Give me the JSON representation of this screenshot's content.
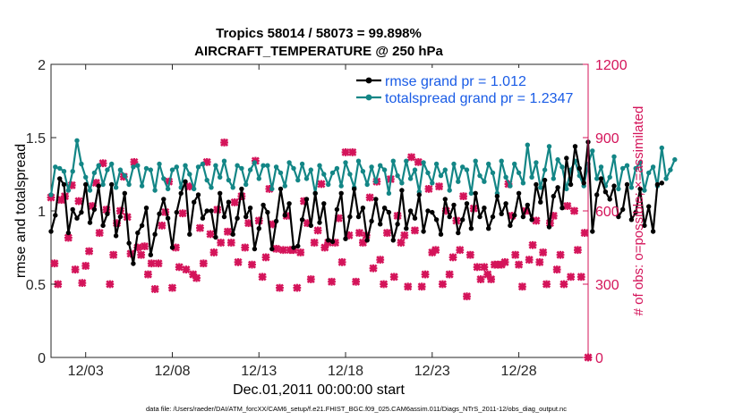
{
  "chart_data": {
    "type": "line",
    "title_line1": "Tropics 58014 / 58073 = 99.898%",
    "title_line2": "AIRCRAFT_TEMPERATURE @ 250 hPa",
    "xlabel": "Dec.01,2011 00:00:00 start",
    "ylabel": "rmse and totalspread",
    "ylabel_right": "# of obs: o=possible; ×=assimilated",
    "footnote": "data file: /Users/raeder/DAI/ATM_forcXX/CAM6_setup/f.e21.FHIST_BGC.f09_025.CAM6assim.011/Diags_NTrS_2011-12/obs_diag_output.nc",
    "xlim": [
      1.0,
      32.0
    ],
    "ylim": [
      0,
      2
    ],
    "ylim_right": [
      0,
      1200
    ],
    "x_ticks": [
      3,
      8,
      13,
      18,
      23,
      28
    ],
    "x_tick_labels": [
      "12/03",
      "12/08",
      "12/13",
      "12/18",
      "12/23",
      "12/28"
    ],
    "y_ticks": [
      0,
      0.5,
      1,
      1.5,
      2
    ],
    "y_tick_labels": [
      "0",
      "0.5",
      "1",
      "1.5",
      "2"
    ],
    "y_right_ticks": [
      0,
      300,
      600,
      900,
      1200
    ],
    "y_right_tick_labels": [
      "0",
      "300",
      "600",
      "900",
      "1200"
    ],
    "colors": {
      "rmse": "#000000",
      "spread": "#138686",
      "obs": "#d4145a"
    },
    "series": [
      {
        "name": "rmse grand pr = 1.012",
        "x_start": 1.0,
        "x_step": 0.25,
        "values": [
          0.86,
          0.97,
          1.22,
          1.18,
          0.85,
          1.01,
          0.95,
          0.99,
          1.18,
          0.92,
          1.01,
          1.17,
          0.9,
          0.98,
          1.18,
          0.83,
          0.96,
          1.12,
          0.78,
          0.64,
          0.85,
          0.9,
          1.02,
          0.7,
          0.84,
          0.98,
          1.08,
          0.95,
          0.75,
          0.99,
          1.12,
          1.2,
          0.84,
          1.06,
          1.11,
          0.95,
          1.0,
          1.0,
          0.82,
          1.12,
          0.96,
          1.06,
          0.84,
          0.95,
          1.15,
          0.96,
          1.02,
          0.74,
          0.88,
          1.04,
          0.99,
          0.74,
          0.93,
          1.15,
          0.97,
          1.05,
          0.75,
          0.76,
          0.94,
          1.08,
          0.9,
          1.12,
          0.92,
          1.05,
          0.8,
          0.79,
          1.01,
          1.12,
          0.81,
          0.96,
          1.15,
          0.96,
          1.02,
          0.8,
          0.93,
          1.08,
          0.91,
          1.02,
          0.99,
          0.8,
          0.91,
          1.14,
          0.88,
          1.0,
          0.95,
          1.11,
          0.86,
          1.0,
          0.99,
          0.94,
          0.84,
          1.08,
          0.96,
          1.04,
          0.85,
          0.94,
          1.05,
          0.88,
          1.12,
          0.96,
          1.02,
          0.88,
          0.96,
          1.1,
          0.98,
          1.05,
          0.9,
          0.97,
          1.12,
          0.96,
          1.04,
          0.94,
          1.18,
          1.06,
          1.21,
          0.89,
          1.1,
          1.16,
          1.02,
          1.36,
          1.18,
          1.44,
          1.29,
          1.19,
          1.47,
          0.86,
          1.11,
          1.22,
          1.13,
          1.08,
          1.17,
          0.96,
          1.01,
          1.18,
          0.94,
          0.99,
          1.15,
          0.9,
          1.03,
          0.86,
          1.18,
          1.19
        ]
      },
      {
        "name": "totalspread grand pr = 1.2347",
        "x_start": 1.0,
        "x_step": 0.25,
        "values": [
          1.11,
          1.3,
          1.29,
          1.27,
          1.14,
          1.27,
          1.48,
          1.32,
          1.23,
          1.14,
          1.26,
          1.31,
          1.18,
          1.28,
          1.32,
          1.16,
          1.28,
          1.24,
          1.18,
          1.3,
          1.31,
          1.17,
          1.29,
          1.28,
          1.14,
          1.32,
          1.22,
          1.15,
          1.28,
          1.3,
          1.16,
          1.31,
          1.25,
          1.15,
          1.3,
          1.32,
          1.21,
          1.16,
          1.31,
          1.23,
          1.34,
          1.21,
          1.16,
          1.31,
          1.29,
          1.18,
          1.28,
          1.33,
          1.22,
          1.31,
          1.31,
          1.15,
          1.3,
          1.26,
          1.17,
          1.33,
          1.29,
          1.21,
          1.32,
          1.22,
          1.28,
          1.12,
          1.31,
          1.25,
          1.18,
          1.26,
          1.29,
          1.17,
          1.33,
          1.25,
          1.16,
          1.34,
          1.27,
          1.18,
          1.3,
          1.2,
          1.31,
          1.28,
          1.12,
          1.34,
          1.24,
          1.19,
          1.34,
          1.22,
          1.28,
          1.13,
          1.33,
          1.26,
          1.19,
          1.32,
          1.24,
          1.28,
          1.14,
          1.32,
          1.2,
          1.3,
          1.28,
          1.12,
          1.34,
          1.24,
          1.2,
          1.32,
          1.26,
          1.12,
          1.34,
          1.23,
          1.17,
          1.32,
          1.26,
          1.19,
          1.45,
          1.23,
          1.33,
          1.16,
          1.28,
          1.44,
          1.22,
          1.35,
          1.3,
          1.15,
          1.28,
          1.34,
          1.24,
          1.17,
          1.32,
          1.41,
          1.22,
          1.3,
          1.17,
          1.23,
          1.37,
          1.15,
          1.29,
          1.31,
          1.16,
          1.29,
          1.33,
          1.14,
          1.26,
          1.3,
          1.17,
          1.43,
          1.22,
          1.28,
          1.35
        ]
      }
    ],
    "obs_assimilated": {
      "name": "# assimilated",
      "points": [
        [
          1.0,
          655
        ],
        [
          1.2,
          385
        ],
        [
          1.4,
          300
        ],
        [
          1.6,
          645
        ],
        [
          1.8,
          660
        ],
        [
          2.0,
          490
        ],
        [
          2.2,
          705
        ],
        [
          2.4,
          360
        ],
        [
          2.6,
          640
        ],
        [
          2.8,
          305
        ],
        [
          3.0,
          375
        ],
        [
          3.2,
          435
        ],
        [
          3.4,
          620
        ],
        [
          3.6,
          715
        ],
        [
          3.8,
          510
        ],
        [
          4.0,
          795
        ],
        [
          4.2,
          605
        ],
        [
          4.4,
          300
        ],
        [
          4.6,
          420
        ],
        [
          4.8,
          550
        ],
        [
          5.0,
          600
        ],
        [
          5.2,
          740
        ],
        [
          5.4,
          575
        ],
        [
          5.6,
          425
        ],
        [
          5.8,
          800
        ],
        [
          6.0,
          450
        ],
        [
          6.2,
          420
        ],
        [
          6.4,
          455
        ],
        [
          6.6,
          340
        ],
        [
          6.8,
          385
        ],
        [
          7.0,
          280
        ],
        [
          7.2,
          385
        ],
        [
          7.4,
          540
        ],
        [
          7.6,
          595
        ],
        [
          7.8,
          720
        ],
        [
          8.0,
          285
        ],
        [
          8.2,
          450
        ],
        [
          8.4,
          370
        ],
        [
          8.6,
          590
        ],
        [
          8.8,
          360
        ],
        [
          9.0,
          700
        ],
        [
          9.2,
          340
        ],
        [
          9.4,
          325
        ],
        [
          9.6,
          530
        ],
        [
          9.8,
          385
        ],
        [
          10.0,
          800
        ],
        [
          10.2,
          505
        ],
        [
          10.4,
          430
        ],
        [
          10.6,
          605
        ],
        [
          10.8,
          470
        ],
        [
          11.0,
          880
        ],
        [
          11.2,
          515
        ],
        [
          11.4,
          470
        ],
        [
          11.6,
          635
        ],
        [
          11.8,
          390
        ],
        [
          12.0,
          660
        ],
        [
          12.2,
          450
        ],
        [
          12.4,
          550
        ],
        [
          12.6,
          380
        ],
        [
          12.8,
          805
        ],
        [
          13.0,
          560
        ],
        [
          13.2,
          330
        ],
        [
          13.4,
          410
        ],
        [
          13.6,
          690
        ],
        [
          13.8,
          545
        ],
        [
          14.0,
          445
        ],
        [
          14.2,
          285
        ],
        [
          14.4,
          440
        ],
        [
          14.6,
          580
        ],
        [
          14.8,
          440
        ],
        [
          15.0,
          440
        ],
        [
          15.2,
          285
        ],
        [
          15.4,
          430
        ],
        [
          15.6,
          640
        ],
        [
          15.8,
          550
        ],
        [
          16.0,
          320
        ],
        [
          16.2,
          470
        ],
        [
          16.4,
          520
        ],
        [
          16.6,
          710
        ],
        [
          16.8,
          450
        ],
        [
          17.0,
          470
        ],
        [
          17.2,
          310
        ],
        [
          17.4,
          470
        ],
        [
          17.6,
          570
        ],
        [
          17.8,
          390
        ],
        [
          18.0,
          840
        ],
        [
          18.2,
          500
        ],
        [
          18.4,
          840
        ],
        [
          18.6,
          310
        ],
        [
          18.8,
          510
        ],
        [
          19.0,
          470
        ],
        [
          19.2,
          500
        ],
        [
          19.4,
          655
        ],
        [
          19.6,
          365
        ],
        [
          19.8,
          720
        ],
        [
          20.0,
          400
        ],
        [
          20.2,
          300
        ],
        [
          20.4,
          510
        ],
        [
          20.6,
          730
        ],
        [
          20.8,
          330
        ],
        [
          21.0,
          580
        ],
        [
          21.2,
          470
        ],
        [
          21.4,
          500
        ],
        [
          21.6,
          290
        ],
        [
          21.8,
          820
        ],
        [
          22.0,
          520
        ],
        [
          22.2,
          800
        ],
        [
          22.4,
          290
        ],
        [
          22.6,
          340
        ],
        [
          22.8,
          690
        ],
        [
          23.0,
          430
        ],
        [
          23.2,
          440
        ],
        [
          23.4,
          700
        ],
        [
          23.6,
          300
        ],
        [
          23.8,
          600
        ],
        [
          24.0,
          340
        ],
        [
          24.2,
          410
        ],
        [
          24.4,
          560
        ],
        [
          24.6,
          440
        ],
        [
          24.8,
          660
        ],
        [
          25.0,
          250
        ],
        [
          25.2,
          420
        ],
        [
          25.4,
          610
        ],
        [
          25.6,
          370
        ],
        [
          25.8,
          320
        ],
        [
          26.0,
          370
        ],
        [
          26.2,
          340
        ],
        [
          26.4,
          320
        ],
        [
          26.6,
          380
        ],
        [
          26.8,
          380
        ],
        [
          27.0,
          380
        ],
        [
          27.2,
          390
        ],
        [
          27.4,
          710
        ],
        [
          27.6,
          580
        ],
        [
          27.8,
          420
        ],
        [
          28.0,
          380
        ],
        [
          28.2,
          290
        ],
        [
          28.4,
          600
        ],
        [
          28.6,
          400
        ],
        [
          28.8,
          460
        ],
        [
          29.0,
          560
        ],
        [
          29.2,
          390
        ],
        [
          29.4,
          430
        ],
        [
          29.6,
          300
        ],
        [
          29.8,
          550
        ],
        [
          30.0,
          580
        ],
        [
          30.2,
          360
        ],
        [
          30.4,
          420
        ],
        [
          30.6,
          300
        ],
        [
          30.8,
          620
        ],
        [
          31.0,
          330
        ],
        [
          31.2,
          600
        ],
        [
          31.4,
          440
        ],
        [
          31.6,
          330
        ],
        [
          31.8,
          510
        ],
        [
          32.0,
          0
        ]
      ]
    }
  }
}
